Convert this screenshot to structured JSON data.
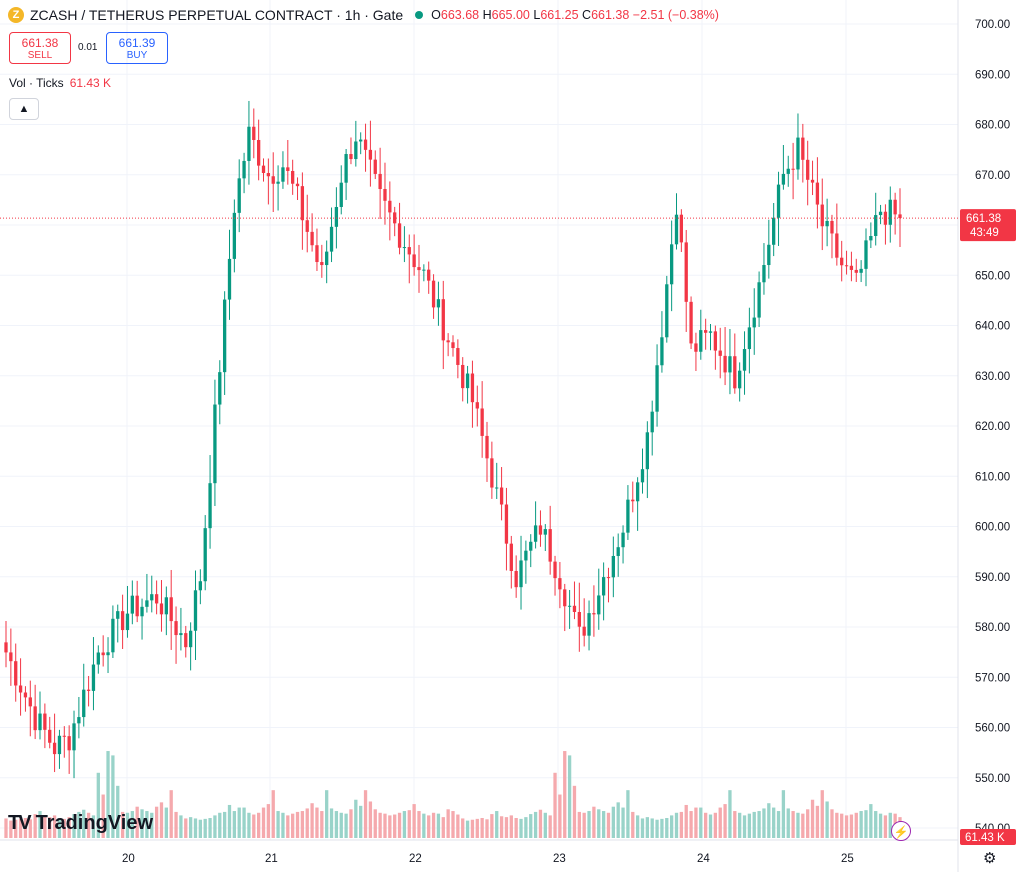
{
  "header": {
    "symbol_icon": "zcash-coin-icon",
    "title": "ZCASH / TETHERUS PERPETUAL CONTRACT · 1h · Gate",
    "ohlc": {
      "o_label": "O",
      "o": "663.68",
      "h_label": "H",
      "h": "665.00",
      "l_label": "L",
      "l": "661.25",
      "c_label": "C",
      "c": "661.38",
      "change": "−2.51 (−0.38%)"
    }
  },
  "trade": {
    "sell_price": "661.38",
    "sell_label": "SELL",
    "spread": "0.01",
    "buy_price": "661.39",
    "buy_label": "BUY"
  },
  "volume_legend": {
    "label": "Vol · Ticks",
    "value": "61.43 K"
  },
  "collapse_icon": "chevron-up-icon",
  "logo": {
    "mark": "TV",
    "text": "TradingView"
  },
  "price_badge": {
    "price": "661.38",
    "countdown": "43:49"
  },
  "volume_badge": "61.43 K",
  "colors": {
    "up": "#089981",
    "down": "#f23645",
    "up_vol": "#99d3c9",
    "down_vol": "#f5a9ad",
    "grid": "#f0f3fa"
  },
  "chart_data": {
    "type": "candlestick",
    "y_axis": {
      "ticks": [
        "700.00",
        "690.00",
        "680.00",
        "670.00",
        "660.00",
        "650.00",
        "640.00",
        "630.00",
        "620.00",
        "610.00",
        "600.00",
        "590.00",
        "580.00",
        "570.00",
        "560.00",
        "550.00",
        "540.00"
      ],
      "range": [
        537,
        703
      ]
    },
    "x_axis": {
      "ticks": [
        "20",
        "21",
        "22",
        "23",
        "24",
        "25"
      ]
    },
    "last_price": 661.38,
    "anchors": [
      [
        0,
        575
      ],
      [
        6,
        562
      ],
      [
        10,
        556
      ],
      [
        13,
        558
      ],
      [
        19,
        575
      ],
      [
        25,
        583
      ],
      [
        31,
        586
      ],
      [
        37,
        577
      ],
      [
        40,
        590
      ],
      [
        47,
        664
      ],
      [
        50,
        678
      ],
      [
        54,
        670
      ],
      [
        57,
        672
      ],
      [
        60,
        665
      ],
      [
        65,
        650
      ],
      [
        69,
        670
      ],
      [
        72,
        678
      ],
      [
        77,
        665
      ],
      [
        80,
        660
      ],
      [
        86,
        650
      ],
      [
        90,
        640
      ],
      [
        96,
        625
      ],
      [
        100,
        610
      ],
      [
        105,
        590
      ],
      [
        110,
        600
      ],
      [
        114,
        590
      ],
      [
        118,
        578
      ],
      [
        123,
        590
      ],
      [
        127,
        600
      ],
      [
        132,
        618
      ],
      [
        135,
        640
      ],
      [
        138,
        665
      ],
      [
        141,
        635
      ],
      [
        145,
        638
      ],
      [
        150,
        630
      ],
      [
        155,
        648
      ],
      [
        160,
        670
      ],
      [
        163,
        675
      ],
      [
        168,
        660
      ],
      [
        172,
        652
      ],
      [
        175,
        648
      ],
      [
        180,
        663
      ],
      [
        184,
        661.38
      ]
    ],
    "volume": {
      "base_series": [
        45,
        40,
        42,
        44,
        46,
        43,
        55,
        62,
        50,
        48,
        52,
        46,
        44,
        48,
        55,
        60,
        65,
        58,
        52,
        150,
        100,
        200,
        190,
        120,
        60,
        58,
        62,
        72,
        66,
        62,
        58,
        72,
        82,
        70,
        110,
        60,
        52,
        45,
        48,
        45,
        42,
        44,
        46,
        52,
        58,
        60,
        76,
        62,
        70,
        70,
        58,
        54,
        58,
        70,
        78,
        110,
        62,
        58,
        52,
        56,
        60,
        62,
        68,
        80,
        70,
        62,
        110,
        68,
        62,
        58,
        56,
        66,
        88,
        74,
        110,
        84,
        66,
        58,
        56,
        52,
        54,
        58,
        62,
        64,
        78,
        62,
        56,
        52,
        58,
        56,
        48,
        66,
        62,
        54
      ],
      "max": 230
    }
  }
}
